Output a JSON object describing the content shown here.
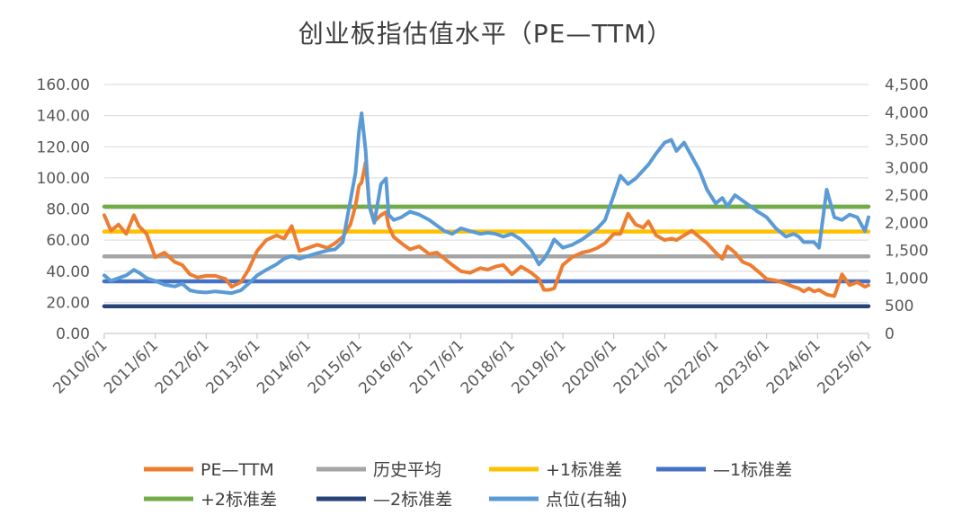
{
  "chart_data": {
    "type": "line",
    "title": "创业板指估值水平（PE—TTM）",
    "x_tick_labels": [
      "2010/6/1",
      "2011/6/1",
      "2012/6/1",
      "2013/6/1",
      "2014/6/1",
      "2015/6/1",
      "2016/6/1",
      "2017/6/1",
      "2018/6/1",
      "2019/6/1",
      "2020/6/1",
      "2021/6/1",
      "2022/6/1",
      "2023/6/1",
      "2024/6/1",
      "2025/6/1"
    ],
    "y_left": {
      "range": [
        0,
        160
      ],
      "ticks": [
        "0.00",
        "20.00",
        "40.00",
        "60.00",
        "80.00",
        "100.00",
        "120.00",
        "140.00",
        "160.00"
      ]
    },
    "y_right": {
      "range": [
        0,
        4500
      ],
      "ticks": [
        "0",
        "500",
        "1,000",
        "1,500",
        "2,000",
        "2,500",
        "3,000",
        "3,500",
        "4,000",
        "4,500"
      ]
    },
    "grid": "horizontal",
    "legend_placement": "bottom",
    "series": [
      {
        "name": "PE—TTM",
        "axis": "left",
        "color": "#ED7D31",
        "x": [
          2010.42,
          2010.55,
          2010.7,
          2010.85,
          2011.0,
          2011.1,
          2011.25,
          2011.42,
          2011.6,
          2011.8,
          2011.95,
          2012.1,
          2012.25,
          2012.42,
          2012.6,
          2012.8,
          2012.92,
          2013.1,
          2013.25,
          2013.42,
          2013.6,
          2013.8,
          2013.95,
          2014.1,
          2014.25,
          2014.42,
          2014.6,
          2014.8,
          2014.95,
          2015.1,
          2015.25,
          2015.35,
          2015.42,
          2015.47,
          2015.55,
          2015.62,
          2015.72,
          2015.85,
          2015.95,
          2016.0,
          2016.1,
          2016.25,
          2016.42,
          2016.6,
          2016.8,
          2016.95,
          2017.1,
          2017.25,
          2017.42,
          2017.6,
          2017.8,
          2017.95,
          2018.1,
          2018.25,
          2018.42,
          2018.6,
          2018.8,
          2018.95,
          2019.05,
          2019.15,
          2019.25,
          2019.42,
          2019.6,
          2019.8,
          2019.95,
          2020.1,
          2020.25,
          2020.42,
          2020.55,
          2020.7,
          2020.85,
          2021.0,
          2021.1,
          2021.25,
          2021.42,
          2021.55,
          2021.65,
          2021.8,
          2021.95,
          2022.1,
          2022.25,
          2022.42,
          2022.55,
          2022.65,
          2022.8,
          2022.95,
          2023.1,
          2023.25,
          2023.42,
          2023.6,
          2023.8,
          2023.95,
          2024.05,
          2024.15,
          2024.25,
          2024.35,
          2024.45,
          2024.6,
          2024.75,
          2024.9,
          2025.05,
          2025.2,
          2025.35,
          2025.42
        ],
        "values": [
          76,
          66,
          70,
          64,
          76,
          69,
          64,
          49,
          52,
          46,
          44,
          38,
          36,
          37,
          37,
          35,
          30,
          33,
          41,
          53,
          60,
          63,
          61,
          69,
          53,
          55,
          57,
          55,
          58,
          62,
          70,
          82,
          95,
          97,
          110,
          83,
          72,
          76,
          78,
          69,
          62,
          58,
          54,
          56,
          51,
          52,
          48,
          44,
          40,
          39,
          42,
          41,
          43,
          44,
          38,
          43,
          39,
          35,
          28,
          28,
          29,
          44,
          49,
          52,
          53,
          55,
          58,
          64,
          64,
          77,
          70,
          68,
          72,
          63,
          60,
          61,
          60,
          63,
          66,
          62,
          58,
          52,
          48,
          56,
          52,
          46,
          44,
          40,
          35,
          34,
          32,
          30,
          29,
          27,
          29,
          27,
          28,
          25,
          24,
          38,
          31,
          33,
          30,
          31
        ]
      },
      {
        "name": "历史平均",
        "axis": "left",
        "color": "#A5A5A5",
        "x": [
          2010.42,
          2025.42
        ],
        "values": [
          49.5,
          49.5
        ]
      },
      {
        "name": "+1标准差",
        "axis": "left",
        "color": "#FFC000",
        "x": [
          2010.42,
          2025.42
        ],
        "values": [
          65.5,
          65.5
        ]
      },
      {
        "name": "—1标准差",
        "axis": "left",
        "color": "#4472C4",
        "x": [
          2010.42,
          2025.42
        ],
        "values": [
          33.5,
          33.5
        ]
      },
      {
        "name": "+2标准差",
        "axis": "left",
        "color": "#70AD47",
        "x": [
          2010.42,
          2025.42
        ],
        "values": [
          81.5,
          81.5
        ]
      },
      {
        "name": "—2标准差",
        "axis": "left",
        "color": "#264478",
        "x": [
          2010.42,
          2025.42
        ],
        "values": [
          17.5,
          17.5
        ]
      },
      {
        "name": "点位(右轴)",
        "axis": "right",
        "color": "#5B9BD5",
        "x": [
          2010.42,
          2010.55,
          2010.7,
          2010.85,
          2011.0,
          2011.1,
          2011.25,
          2011.42,
          2011.6,
          2011.8,
          2011.95,
          2012.1,
          2012.25,
          2012.42,
          2012.6,
          2012.8,
          2012.92,
          2013.1,
          2013.25,
          2013.42,
          2013.6,
          2013.8,
          2013.95,
          2014.1,
          2014.25,
          2014.42,
          2014.6,
          2014.8,
          2014.95,
          2015.1,
          2015.25,
          2015.35,
          2015.42,
          2015.47,
          2015.55,
          2015.62,
          2015.72,
          2015.85,
          2015.95,
          2016.0,
          2016.1,
          2016.25,
          2016.42,
          2016.6,
          2016.8,
          2016.95,
          2017.1,
          2017.25,
          2017.42,
          2017.6,
          2017.8,
          2017.95,
          2018.1,
          2018.25,
          2018.42,
          2018.6,
          2018.8,
          2018.95,
          2019.05,
          2019.15,
          2019.25,
          2019.42,
          2019.6,
          2019.8,
          2019.95,
          2020.1,
          2020.25,
          2020.42,
          2020.55,
          2020.7,
          2020.85,
          2021.0,
          2021.1,
          2021.25,
          2021.42,
          2021.55,
          2021.65,
          2021.8,
          2021.95,
          2022.1,
          2022.25,
          2022.42,
          2022.55,
          2022.65,
          2022.8,
          2022.95,
          2023.1,
          2023.25,
          2023.42,
          2023.6,
          2023.8,
          2023.95,
          2024.05,
          2024.15,
          2024.25,
          2024.35,
          2024.45,
          2024.6,
          2024.75,
          2024.9,
          2025.05,
          2025.2,
          2025.35,
          2025.42
        ],
        "values": [
          1050,
          950,
          1000,
          1050,
          1150,
          1100,
          1000,
          950,
          880,
          850,
          900,
          780,
          750,
          740,
          760,
          740,
          730,
          780,
          900,
          1050,
          1150,
          1250,
          1350,
          1400,
          1350,
          1400,
          1450,
          1500,
          1520,
          1650,
          2400,
          2900,
          3650,
          3980,
          3300,
          2300,
          2000,
          2700,
          2800,
          2150,
          2050,
          2100,
          2200,
          2150,
          2050,
          1950,
          1850,
          1800,
          1900,
          1850,
          1800,
          1820,
          1800,
          1750,
          1800,
          1700,
          1500,
          1250,
          1350,
          1500,
          1700,
          1550,
          1600,
          1700,
          1800,
          1900,
          2050,
          2500,
          2850,
          2700,
          2800,
          2950,
          3050,
          3250,
          3450,
          3500,
          3300,
          3450,
          3200,
          2950,
          2600,
          2350,
          2450,
          2300,
          2500,
          2400,
          2300,
          2200,
          2100,
          1900,
          1750,
          1800,
          1750,
          1650,
          1650,
          1650,
          1550,
          2600,
          2100,
          2050,
          2150,
          2100,
          1850,
          2100
        ]
      }
    ]
  }
}
